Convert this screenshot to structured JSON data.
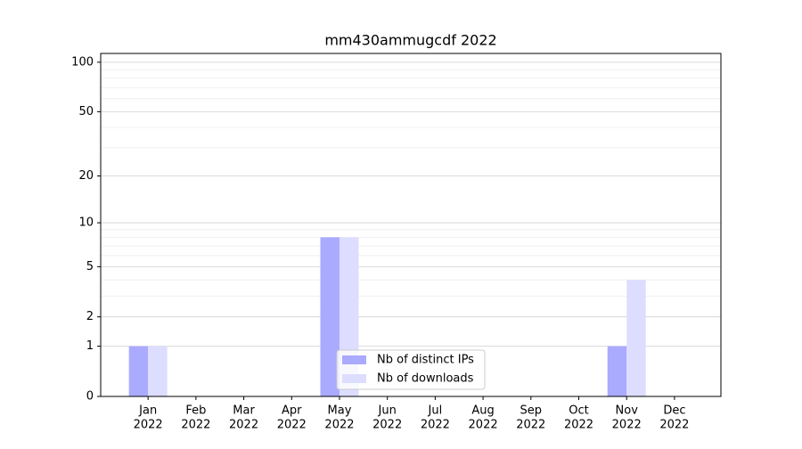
{
  "chart_data": {
    "type": "bar",
    "title": "mm430ammugcdf 2022",
    "categories": [
      [
        "Jan",
        "2022"
      ],
      [
        "Feb",
        "2022"
      ],
      [
        "Mar",
        "2022"
      ],
      [
        "Apr",
        "2022"
      ],
      [
        "May",
        "2022"
      ],
      [
        "Jun",
        "2022"
      ],
      [
        "Jul",
        "2022"
      ],
      [
        "Aug",
        "2022"
      ],
      [
        "Sep",
        "2022"
      ],
      [
        "Oct",
        "2022"
      ],
      [
        "Nov",
        "2022"
      ],
      [
        "Dec",
        "2022"
      ]
    ],
    "series": [
      {
        "name": "Nb of distinct IPs",
        "color": "#aaaaff",
        "values": [
          1,
          0,
          0,
          0,
          8,
          0,
          0,
          0,
          0,
          0,
          1,
          0
        ]
      },
      {
        "name": "Nb of downloads",
        "color": "#ddddff",
        "values": [
          1,
          0,
          0,
          0,
          8,
          0,
          0,
          0,
          0,
          0,
          4,
          0
        ]
      }
    ],
    "yscale": "log1p",
    "ylim": [
      0,
      113
    ],
    "yticks": [
      0,
      1,
      2,
      5,
      10,
      20,
      50,
      100
    ],
    "minor_yticks": [
      3,
      4,
      6,
      7,
      8,
      9,
      30,
      40,
      60,
      70,
      80,
      90
    ],
    "grid": true,
    "legend": "lower center"
  }
}
